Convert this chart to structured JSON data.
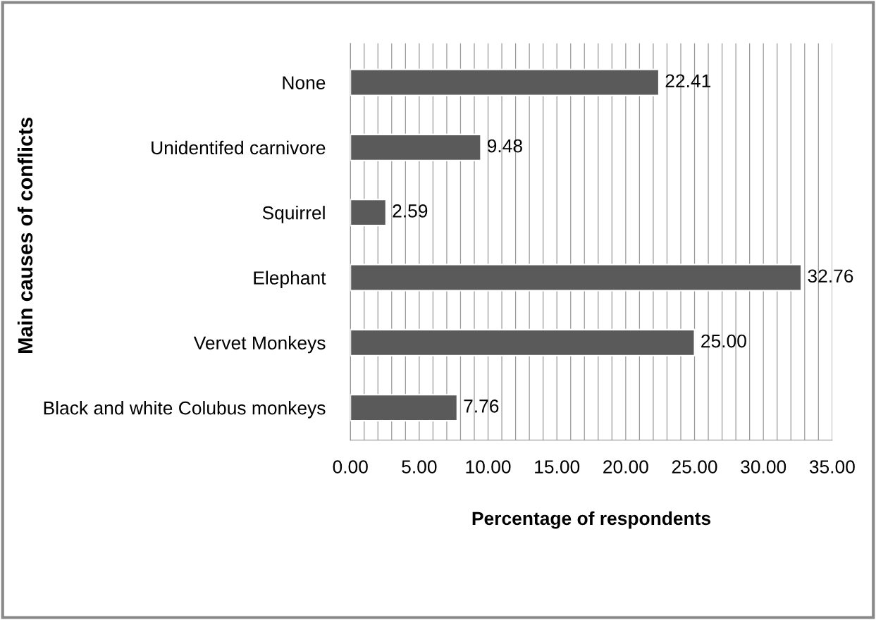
{
  "chart_data": {
    "type": "bar",
    "orientation": "horizontal",
    "xlabel": "Percentage of respondents",
    "ylabel": "Main causes of conflicts",
    "categories": [
      "None",
      "Unidentifed carnivore",
      "Squirrel",
      "Elephant",
      "Vervet Monkeys",
      "Black and white Colubus monkeys"
    ],
    "values": [
      22.41,
      9.48,
      2.59,
      32.76,
      25.0,
      7.76
    ],
    "value_labels": [
      "22.41",
      "9.48",
      "2.59",
      "32.76",
      "25.00",
      "7.76"
    ],
    "color": "#5a5a5a",
    "xlim": [
      0,
      35
    ],
    "xticks": [
      {
        "value": 0,
        "label": "0.00"
      },
      {
        "value": 1,
        "label": null
      },
      {
        "value": 2,
        "label": null
      },
      {
        "value": 3,
        "label": null
      },
      {
        "value": 4,
        "label": null
      },
      {
        "value": 5,
        "label": "5.00"
      },
      {
        "value": 6,
        "label": null
      },
      {
        "value": 7,
        "label": null
      },
      {
        "value": 8,
        "label": null
      },
      {
        "value": 9,
        "label": null
      },
      {
        "value": 10,
        "label": "10.00"
      },
      {
        "value": 11,
        "label": null
      },
      {
        "value": 12,
        "label": null
      },
      {
        "value": 13,
        "label": null
      },
      {
        "value": 14,
        "label": null
      },
      {
        "value": 15,
        "label": "15.00"
      },
      {
        "value": 16,
        "label": null
      },
      {
        "value": 17,
        "label": null
      },
      {
        "value": 18,
        "label": null
      },
      {
        "value": 19,
        "label": null
      },
      {
        "value": 20,
        "label": "20.00"
      },
      {
        "value": 21,
        "label": null
      },
      {
        "value": 22,
        "label": null
      },
      {
        "value": 23,
        "label": null
      },
      {
        "value": 24,
        "label": null
      },
      {
        "value": 25,
        "label": "25.00"
      },
      {
        "value": 26,
        "label": null
      },
      {
        "value": 27,
        "label": null
      },
      {
        "value": 28,
        "label": null
      },
      {
        "value": 29,
        "label": null
      },
      {
        "value": 30,
        "label": "30.00"
      },
      {
        "value": 31,
        "label": null
      },
      {
        "value": 32,
        "label": null
      },
      {
        "value": 33,
        "label": null
      },
      {
        "value": 34,
        "label": null
      },
      {
        "value": 35,
        "label": "35.00"
      }
    ],
    "grid": "x"
  }
}
